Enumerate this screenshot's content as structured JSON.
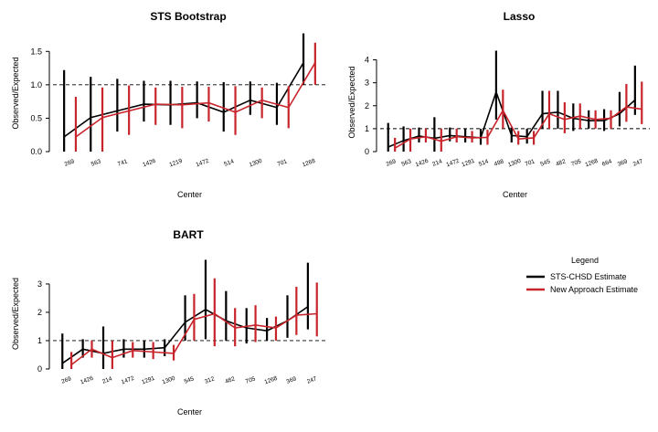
{
  "legend": {
    "title": "Legend",
    "items": [
      {
        "label": "STS-CHSD Estimate",
        "color": "#000000"
      },
      {
        "label": "New Approach Estimate",
        "color": "#c8242b"
      }
    ]
  },
  "chart_data": [
    {
      "type": "errorbar",
      "title": "STS Bootstrap",
      "xlabel": "Center",
      "ylabel": "Observed/Expected",
      "ylim": [
        0,
        1.75
      ],
      "yticks": [
        0.0,
        0.5,
        1.0,
        1.5
      ],
      "reference_line": 1.0,
      "categories": [
        "269",
        "563",
        "741",
        "1426",
        "1219",
        "1472",
        "514",
        "1300",
        "701",
        "1268"
      ],
      "series": [
        {
          "color": "#000000",
          "values": [
            0.22,
            0.51,
            0.61,
            0.71,
            0.7,
            0.73,
            0.59,
            0.77,
            0.66,
            1.33
          ],
          "lower": [
            0.0,
            0.0,
            0.3,
            0.45,
            0.4,
            0.5,
            0.3,
            0.55,
            0.4,
            1.0
          ],
          "upper": [
            1.22,
            1.12,
            1.09,
            1.06,
            1.06,
            1.05,
            1.04,
            1.05,
            1.03,
            1.77
          ]
        },
        {
          "color": "#c8242b",
          "values": [
            0.22,
            0.51,
            0.61,
            0.71,
            0.7,
            0.73,
            0.59,
            0.77,
            0.66,
            1.33
          ],
          "lower": [
            0.0,
            0.0,
            0.25,
            0.4,
            0.35,
            0.45,
            0.25,
            0.5,
            0.35,
            1.0
          ],
          "upper": [
            0.82,
            0.96,
            0.99,
            0.96,
            0.97,
            0.97,
            0.98,
            0.96,
            0.98,
            1.63
          ]
        }
      ]
    },
    {
      "type": "errorbar",
      "title": "Lasso",
      "xlabel": "Center",
      "ylabel": "Observed/Expected",
      "ylim": [
        0,
        4.3
      ],
      "yticks": [
        0,
        1,
        2,
        3,
        4
      ],
      "reference_line": 1.0,
      "categories": [
        "269",
        "563",
        "1426",
        "214",
        "1472",
        "1291",
        "514",
        "498",
        "1300",
        "701",
        "545",
        "482",
        "705",
        "1268",
        "664",
        "369",
        "247"
      ],
      "series": [
        {
          "color": "#000000",
          "values": [
            0.2,
            0.48,
            0.68,
            0.58,
            0.7,
            0.65,
            0.6,
            2.6,
            0.7,
            0.65,
            1.65,
            1.72,
            1.45,
            1.35,
            1.35,
            1.65,
            2.25
          ],
          "lower": [
            0.0,
            0.0,
            0.4,
            0.0,
            0.45,
            0.4,
            0.3,
            1.4,
            0.4,
            0.35,
            1.0,
            1.0,
            0.9,
            1.0,
            0.9,
            1.1,
            1.6
          ],
          "upper": [
            1.25,
            1.1,
            1.05,
            1.5,
            1.05,
            1.0,
            1.0,
            4.4,
            1.05,
            1.0,
            2.65,
            2.65,
            2.1,
            1.8,
            1.85,
            2.6,
            3.75
          ]
        },
        {
          "color": "#c8242b",
          "values": [
            0.15,
            0.55,
            0.65,
            0.45,
            0.65,
            0.6,
            0.62,
            1.8,
            0.55,
            0.6,
            1.65,
            1.4,
            1.55,
            1.4,
            1.45,
            1.95,
            1.85
          ],
          "lower": [
            0.0,
            0.0,
            0.4,
            0.0,
            0.4,
            0.4,
            0.3,
            1.0,
            0.3,
            0.3,
            1.0,
            0.8,
            1.0,
            1.0,
            1.0,
            1.3,
            1.2
          ],
          "upper": [
            0.6,
            1.0,
            1.0,
            1.0,
            1.0,
            0.9,
            0.95,
            2.7,
            0.9,
            0.9,
            2.65,
            2.15,
            2.1,
            1.8,
            1.8,
            2.95,
            3.05
          ]
        }
      ]
    },
    {
      "type": "errorbar",
      "title": "BART",
      "xlabel": "Center",
      "ylabel": "Observed/Expected",
      "ylim": [
        0,
        3.9
      ],
      "yticks": [
        0,
        1,
        2,
        3
      ],
      "reference_line": 1.0,
      "categories": [
        "269",
        "1426",
        "214",
        "1472",
        "1291",
        "1300",
        "545",
        "312",
        "482",
        "705",
        "1268",
        "369",
        "247"
      ],
      "series": [
        {
          "color": "#000000",
          "values": [
            0.2,
            0.7,
            0.55,
            0.7,
            0.7,
            0.75,
            1.65,
            2.1,
            1.7,
            1.45,
            1.35,
            1.7,
            2.2
          ],
          "lower": [
            0.0,
            0.4,
            0.0,
            0.4,
            0.4,
            0.45,
            1.0,
            1.05,
            1.0,
            0.9,
            1.0,
            1.1,
            1.4
          ],
          "upper": [
            1.25,
            1.05,
            1.5,
            1.05,
            1.0,
            1.05,
            2.6,
            3.85,
            2.75,
            2.15,
            1.8,
            2.6,
            3.75
          ]
        },
        {
          "color": "#c8242b",
          "values": [
            0.15,
            0.7,
            0.4,
            0.65,
            0.6,
            0.55,
            1.75,
            1.95,
            1.45,
            1.55,
            1.45,
            1.9,
            1.95
          ],
          "lower": [
            0.0,
            0.4,
            0.0,
            0.4,
            0.35,
            0.3,
            1.0,
            0.8,
            0.8,
            0.95,
            1.0,
            1.2,
            1.15
          ],
          "upper": [
            0.6,
            1.0,
            1.0,
            0.95,
            0.95,
            0.85,
            2.65,
            3.2,
            2.15,
            2.25,
            1.85,
            2.9,
            3.05
          ]
        }
      ]
    }
  ]
}
